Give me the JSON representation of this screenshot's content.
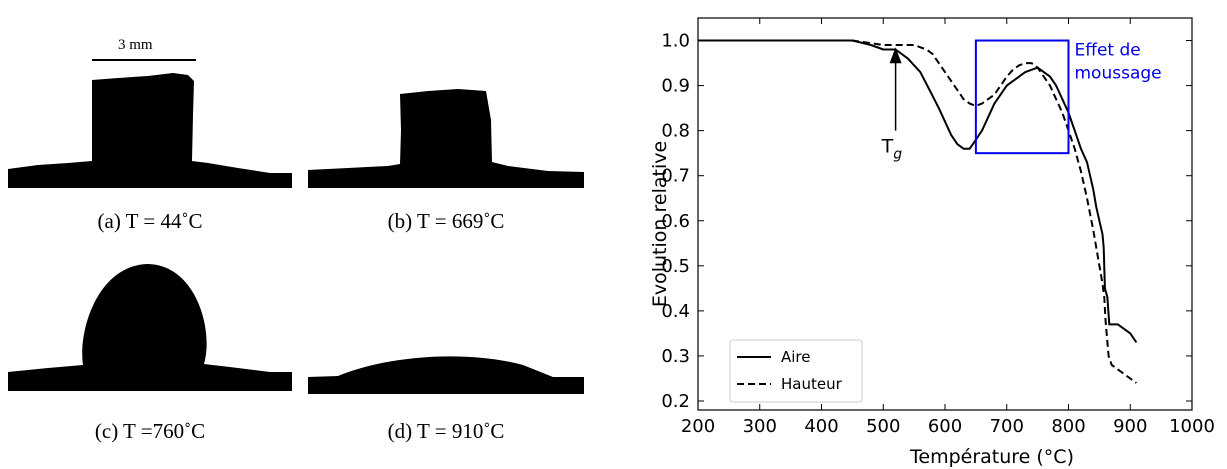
{
  "photos": {
    "scale_bar_label": "3 mm",
    "captions": [
      "(a) T = 44˚C",
      "(b) T = 669˚C",
      "(c) T =760˚C",
      "(d) T = 910˚C"
    ]
  },
  "chart_data": {
    "type": "line",
    "xlabel": "Température (°C)",
    "ylabel": "Evolution relative",
    "xlim": [
      200,
      1000
    ],
    "ylim": [
      0.18,
      1.05
    ],
    "xticks": [
      200,
      300,
      400,
      500,
      600,
      700,
      800,
      900,
      1000
    ],
    "yticks": [
      0.2,
      0.3,
      0.4,
      0.5,
      0.6,
      0.7,
      0.8,
      0.9,
      1.0
    ],
    "xtick_labels": [
      "200",
      "300",
      "400",
      "500",
      "600",
      "700",
      "800",
      "900",
      "1000"
    ],
    "ytick_labels": [
      "0.2",
      "0.3",
      "0.4",
      "0.5",
      "0.6",
      "0.7",
      "0.8",
      "0.9",
      "1.0"
    ],
    "grid": false,
    "legend_position": "bottom-left",
    "series": [
      {
        "name": "Aire",
        "style": "solid",
        "color": "#000000",
        "x": [
          200,
          250,
          300,
          350,
          400,
          450,
          480,
          500,
          520,
          540,
          560,
          575,
          590,
          600,
          610,
          620,
          630,
          640,
          650,
          660,
          670,
          680,
          690,
          700,
          710,
          720,
          730,
          740,
          750,
          760,
          770,
          780,
          790,
          800,
          810,
          820,
          830,
          835,
          840,
          845,
          850,
          855,
          857,
          859,
          861,
          863,
          866,
          870,
          880,
          890,
          900,
          910
        ],
        "y": [
          1.0,
          1.0,
          1.0,
          1.0,
          1.0,
          1.0,
          0.99,
          0.98,
          0.98,
          0.96,
          0.93,
          0.89,
          0.85,
          0.82,
          0.79,
          0.77,
          0.76,
          0.76,
          0.78,
          0.8,
          0.83,
          0.86,
          0.88,
          0.9,
          0.91,
          0.92,
          0.93,
          0.935,
          0.94,
          0.93,
          0.92,
          0.9,
          0.87,
          0.84,
          0.8,
          0.76,
          0.73,
          0.7,
          0.67,
          0.63,
          0.6,
          0.57,
          0.54,
          0.45,
          0.44,
          0.43,
          0.37,
          0.37,
          0.37,
          0.36,
          0.35,
          0.33
        ]
      },
      {
        "name": "Hauteur",
        "style": "dashed",
        "color": "#000000",
        "x": [
          200,
          250,
          300,
          350,
          400,
          450,
          500,
          530,
          550,
          560,
          570,
          580,
          590,
          600,
          610,
          620,
          630,
          640,
          650,
          660,
          670,
          680,
          690,
          700,
          710,
          720,
          730,
          740,
          750,
          760,
          770,
          780,
          790,
          800,
          810,
          820,
          830,
          840,
          850,
          855,
          858,
          860,
          865,
          870,
          880,
          890,
          900,
          910
        ],
        "y": [
          1.0,
          1.0,
          1.0,
          1.0,
          1.0,
          1.0,
          0.99,
          0.99,
          0.99,
          0.985,
          0.98,
          0.97,
          0.95,
          0.93,
          0.91,
          0.89,
          0.87,
          0.86,
          0.855,
          0.86,
          0.87,
          0.88,
          0.9,
          0.92,
          0.935,
          0.945,
          0.95,
          0.95,
          0.94,
          0.92,
          0.9,
          0.87,
          0.84,
          0.8,
          0.76,
          0.71,
          0.65,
          0.58,
          0.5,
          0.46,
          0.43,
          0.38,
          0.3,
          0.28,
          0.27,
          0.26,
          0.25,
          0.24
        ]
      }
    ],
    "annotations": {
      "tg_label_main": "T",
      "tg_label_sub": "g",
      "tg_x": 520,
      "tg_arrow_from_y": 0.8,
      "tg_arrow_to_y": 0.985,
      "box_label_line1": "Effet de",
      "box_label_line2": "moussage",
      "box_x": [
        650,
        800
      ],
      "box_y": [
        0.75,
        1.0
      ],
      "box_color": "#0000ee"
    }
  }
}
